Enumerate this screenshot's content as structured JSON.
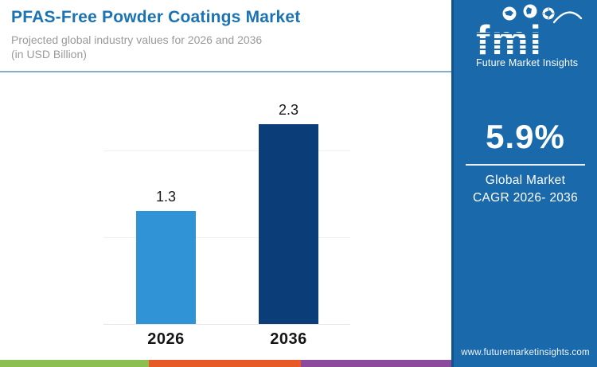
{
  "header": {
    "title": "PFAS-Free Powder Coatings Market",
    "subtitle_line1": "Projected global industry values for 2026 and 2036",
    "subtitle_line2": "(in USD Billion)"
  },
  "chart_data": {
    "type": "bar",
    "title": "PFAS-Free Powder Coatings Market",
    "subtitle": "Projected global industry values for 2026 and 2036 (in USD Billion)",
    "unit": "USD Billion",
    "categories": [
      "2026",
      "2036"
    ],
    "values": [
      1.3,
      2.3
    ],
    "value_labels": [
      "1.3",
      "2.3"
    ],
    "bar_colors": [
      "#2F93D6",
      "#0B3D78"
    ],
    "ylim": [
      0,
      2.5
    ],
    "gridline_values": [
      1.0,
      2.0
    ],
    "grid": true,
    "legend": "none"
  },
  "sidebar": {
    "background_color": "#1A6AAB",
    "logo": {
      "text": "fmi",
      "tagline": "Future Market Insights"
    },
    "cagr": {
      "value": "5.9%",
      "line1": "Global Market",
      "line2": "CAGR 2026- 2036"
    },
    "website": "www.futuremarketinsights.com"
  },
  "footer_strip": {
    "colors": [
      "#8CBF52",
      "#E75A28",
      "#8C4A9C"
    ]
  },
  "brand_colors": {
    "title_blue": "#1B73B4",
    "sidebar_blue": "#1A6AAB",
    "bar_light_blue": "#2F93D6",
    "bar_dark_navy": "#0B3D78"
  }
}
